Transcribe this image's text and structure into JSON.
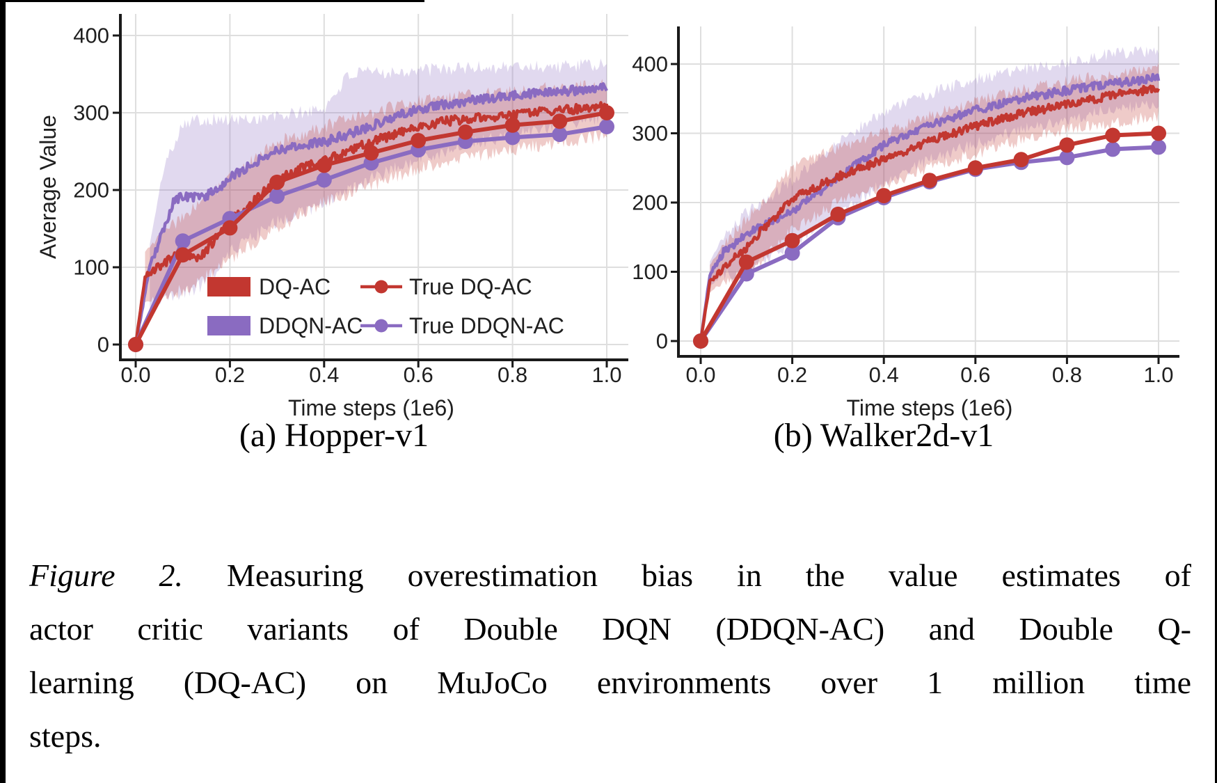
{
  "page": {
    "background": "#ffffff"
  },
  "colors": {
    "red": "#c23730",
    "purple": "#8a6bc1",
    "text": "#1f1f1f",
    "grid": "#dedede",
    "spine": "#1a1a1a"
  },
  "figure": {
    "subcaptions": [
      "(a) Hopper-v1",
      "(b) Walker2d-v1"
    ]
  },
  "caption": {
    "lines": [
      {
        "italic": "Figure 2.",
        "text": " Measuring overestimation bias in the value estimates of"
      },
      {
        "text": "actor critic variants of Double DQN (DDQN-AC) and Double Q-"
      },
      {
        "text": "learning (DQ-AC) on MuJoCo environments over 1 million time"
      },
      {
        "text": "steps."
      }
    ]
  },
  "chart_data": [
    {
      "type": "line",
      "name": "Hopper-v1",
      "xlabel": "Time steps (1e6)",
      "ylabel": "Average Value",
      "xlim": [
        0.0,
        1.0
      ],
      "ylim": [
        0,
        420
      ],
      "xticks": [
        0.0,
        0.2,
        0.4,
        0.6,
        0.8,
        1.0
      ],
      "yticks": [
        0,
        100,
        200,
        300,
        400
      ],
      "grid": true,
      "legend": {
        "position": "lower right",
        "items": [
          {
            "label": "DQ-AC",
            "type": "patch",
            "color": "red"
          },
          {
            "label": "DDQN-AC",
            "type": "patch",
            "color": "purple"
          },
          {
            "label": "True DQ-AC",
            "type": "marker",
            "color": "red"
          },
          {
            "label": "True DDQN-AC",
            "type": "marker",
            "color": "purple"
          }
        ]
      },
      "series": [
        {
          "name": "DQ-AC",
          "style": "noisy",
          "color": "red",
          "points": [
            [
              0,
              0
            ],
            [
              0.02,
              88
            ],
            [
              0.05,
              102
            ],
            [
              0.08,
              112
            ],
            [
              0.1,
              118
            ],
            [
              0.13,
              108
            ],
            [
              0.16,
              130
            ],
            [
              0.2,
              160
            ],
            [
              0.25,
              185
            ],
            [
              0.3,
              212
            ],
            [
              0.35,
              228
            ],
            [
              0.4,
              238
            ],
            [
              0.45,
              250
            ],
            [
              0.5,
              262
            ],
            [
              0.55,
              272
            ],
            [
              0.6,
              283
            ],
            [
              0.65,
              288
            ],
            [
              0.7,
              292
            ],
            [
              0.75,
              295
            ],
            [
              0.8,
              297
            ],
            [
              0.85,
              300
            ],
            [
              0.9,
              303
            ],
            [
              0.95,
              306
            ],
            [
              1.0,
              310
            ]
          ],
          "band_low": [
            [
              0.02,
              55
            ],
            [
              0.05,
              62
            ],
            [
              0.1,
              70
            ],
            [
              0.15,
              88
            ],
            [
              0.2,
              110
            ],
            [
              0.3,
              150
            ],
            [
              0.4,
              185
            ],
            [
              0.5,
              205
            ],
            [
              0.6,
              228
            ],
            [
              0.7,
              242
            ],
            [
              0.8,
              252
            ],
            [
              0.9,
              262
            ],
            [
              1.0,
              270
            ]
          ],
          "band_high": [
            [
              0.02,
              120
            ],
            [
              0.05,
              140
            ],
            [
              0.1,
              165
            ],
            [
              0.15,
              190
            ],
            [
              0.2,
              215
            ],
            [
              0.3,
              262
            ],
            [
              0.4,
              282
            ],
            [
              0.5,
              300
            ],
            [
              0.6,
              315
            ],
            [
              0.7,
              322
            ],
            [
              0.8,
              328
            ],
            [
              0.9,
              332
            ],
            [
              1.0,
              338
            ]
          ]
        },
        {
          "name": "DDQN-AC",
          "style": "noisy",
          "color": "purple",
          "points": [
            [
              0,
              0
            ],
            [
              0.03,
              100
            ],
            [
              0.06,
              150
            ],
            [
              0.08,
              185
            ],
            [
              0.1,
              192
            ],
            [
              0.13,
              190
            ],
            [
              0.15,
              193
            ],
            [
              0.18,
              205
            ],
            [
              0.2,
              215
            ],
            [
              0.25,
              235
            ],
            [
              0.3,
              252
            ],
            [
              0.35,
              258
            ],
            [
              0.4,
              262
            ],
            [
              0.45,
              272
            ],
            [
              0.5,
              283
            ],
            [
              0.55,
              295
            ],
            [
              0.6,
              305
            ],
            [
              0.65,
              310
            ],
            [
              0.7,
              315
            ],
            [
              0.75,
              318
            ],
            [
              0.8,
              322
            ],
            [
              0.85,
              325
            ],
            [
              0.9,
              327
            ],
            [
              0.95,
              330
            ],
            [
              1.0,
              333
            ]
          ],
          "band_low": [
            [
              0.03,
              45
            ],
            [
              0.06,
              60
            ],
            [
              0.1,
              65
            ],
            [
              0.15,
              80
            ],
            [
              0.2,
              120
            ],
            [
              0.3,
              160
            ],
            [
              0.4,
              180
            ],
            [
              0.5,
              215
            ],
            [
              0.6,
              240
            ],
            [
              0.7,
              258
            ],
            [
              0.8,
              272
            ],
            [
              0.9,
              285
            ],
            [
              1.0,
              295
            ]
          ],
          "band_high": [
            [
              0.03,
              130
            ],
            [
              0.06,
              230
            ],
            [
              0.1,
              288
            ],
            [
              0.15,
              292
            ],
            [
              0.2,
              290
            ],
            [
              0.3,
              295
            ],
            [
              0.4,
              305
            ],
            [
              0.45,
              348
            ],
            [
              0.5,
              352
            ],
            [
              0.6,
              355
            ],
            [
              0.7,
              358
            ],
            [
              0.8,
              360
            ],
            [
              0.9,
              360
            ],
            [
              1.0,
              362
            ]
          ]
        },
        {
          "name": "True DQ-AC",
          "style": "markers",
          "color": "red",
          "points": [
            [
              0,
              0
            ],
            [
              0.1,
              116
            ],
            [
              0.2,
              151
            ],
            [
              0.3,
              210
            ],
            [
              0.4,
              232
            ],
            [
              0.5,
              248
            ],
            [
              0.6,
              264
            ],
            [
              0.7,
              275
            ],
            [
              0.8,
              284
            ],
            [
              0.9,
              289
            ],
            [
              1.0,
              300
            ]
          ]
        },
        {
          "name": "True DDQN-AC",
          "style": "markers",
          "color": "purple",
          "points": [
            [
              0,
              0
            ],
            [
              0.1,
              134
            ],
            [
              0.2,
              163
            ],
            [
              0.3,
              192
            ],
            [
              0.4,
              213
            ],
            [
              0.5,
              235
            ],
            [
              0.6,
              252
            ],
            [
              0.7,
              263
            ],
            [
              0.8,
              268
            ],
            [
              0.9,
              272
            ],
            [
              1.0,
              282
            ]
          ]
        }
      ]
    },
    {
      "type": "line",
      "name": "Walker2d-v1",
      "xlabel": "Time steps (1e6)",
      "ylabel": "",
      "xlim": [
        0.0,
        1.0
      ],
      "ylim": [
        0,
        455
      ],
      "xticks": [
        0.0,
        0.2,
        0.4,
        0.6,
        0.8,
        1.0
      ],
      "yticks": [
        0,
        100,
        200,
        300,
        400
      ],
      "grid": true,
      "series": [
        {
          "name": "DQ-AC",
          "style": "noisy",
          "color": "red",
          "points": [
            [
              0,
              0
            ],
            [
              0.02,
              85
            ],
            [
              0.05,
              105
            ],
            [
              0.1,
              135
            ],
            [
              0.15,
              172
            ],
            [
              0.2,
              205
            ],
            [
              0.25,
              222
            ],
            [
              0.3,
              238
            ],
            [
              0.35,
              250
            ],
            [
              0.4,
              262
            ],
            [
              0.45,
              275
            ],
            [
              0.5,
              288
            ],
            [
              0.55,
              300
            ],
            [
              0.6,
              310
            ],
            [
              0.65,
              320
            ],
            [
              0.7,
              328
            ],
            [
              0.75,
              335
            ],
            [
              0.8,
              342
            ],
            [
              0.85,
              348
            ],
            [
              0.9,
              355
            ],
            [
              0.95,
              360
            ],
            [
              1.0,
              365
            ]
          ],
          "band_low": [
            [
              0.02,
              70
            ],
            [
              0.05,
              85
            ],
            [
              0.1,
              95
            ],
            [
              0.2,
              160
            ],
            [
              0.3,
              200
            ],
            [
              0.4,
              225
            ],
            [
              0.5,
              250
            ],
            [
              0.6,
              270
            ],
            [
              0.7,
              290
            ],
            [
              0.8,
              305
            ],
            [
              0.9,
              315
            ],
            [
              1.0,
              325
            ]
          ],
          "band_high": [
            [
              0.02,
              110
            ],
            [
              0.05,
              140
            ],
            [
              0.1,
              175
            ],
            [
              0.2,
              250
            ],
            [
              0.3,
              280
            ],
            [
              0.4,
              300
            ],
            [
              0.5,
              325
            ],
            [
              0.6,
              345
            ],
            [
              0.7,
              362
            ],
            [
              0.8,
              375
            ],
            [
              0.9,
              385
            ],
            [
              1.0,
              395
            ]
          ]
        },
        {
          "name": "DDQN-AC",
          "style": "noisy",
          "color": "purple",
          "points": [
            [
              0,
              0
            ],
            [
              0.02,
              95
            ],
            [
              0.05,
              128
            ],
            [
              0.1,
              155
            ],
            [
              0.15,
              172
            ],
            [
              0.2,
              188
            ],
            [
              0.25,
              210
            ],
            [
              0.3,
              235
            ],
            [
              0.35,
              260
            ],
            [
              0.4,
              282
            ],
            [
              0.45,
              298
            ],
            [
              0.5,
              312
            ],
            [
              0.55,
              322
            ],
            [
              0.6,
              333
            ],
            [
              0.65,
              342
            ],
            [
              0.7,
              350
            ],
            [
              0.75,
              356
            ],
            [
              0.8,
              362
            ],
            [
              0.85,
              367
            ],
            [
              0.9,
              372
            ],
            [
              0.95,
              376
            ],
            [
              1.0,
              380
            ]
          ],
          "band_low": [
            [
              0.02,
              80
            ],
            [
              0.05,
              95
            ],
            [
              0.1,
              100
            ],
            [
              0.2,
              140
            ],
            [
              0.3,
              180
            ],
            [
              0.4,
              230
            ],
            [
              0.5,
              262
            ],
            [
              0.6,
              285
            ],
            [
              0.7,
              305
            ],
            [
              0.8,
              320
            ],
            [
              0.9,
              335
            ],
            [
              1.0,
              340
            ]
          ],
          "band_high": [
            [
              0.02,
              115
            ],
            [
              0.05,
              150
            ],
            [
              0.1,
              185
            ],
            [
              0.2,
              232
            ],
            [
              0.3,
              288
            ],
            [
              0.4,
              332
            ],
            [
              0.5,
              358
            ],
            [
              0.6,
              378
            ],
            [
              0.7,
              392
            ],
            [
              0.8,
              402
            ],
            [
              0.9,
              415
            ],
            [
              1.0,
              420
            ]
          ]
        },
        {
          "name": "True DQ-AC",
          "style": "markers",
          "color": "red",
          "points": [
            [
              0,
              0
            ],
            [
              0.1,
              114
            ],
            [
              0.2,
              145
            ],
            [
              0.3,
              183
            ],
            [
              0.4,
              210
            ],
            [
              0.5,
              232
            ],
            [
              0.6,
              250
            ],
            [
              0.7,
              262
            ],
            [
              0.8,
              283
            ],
            [
              0.9,
              297
            ],
            [
              1.0,
              300
            ]
          ]
        },
        {
          "name": "True DDQN-AC",
          "style": "markers",
          "color": "purple",
          "points": [
            [
              0,
              0
            ],
            [
              0.1,
              97
            ],
            [
              0.2,
              127
            ],
            [
              0.3,
              178
            ],
            [
              0.4,
              207
            ],
            [
              0.5,
              230
            ],
            [
              0.6,
              248
            ],
            [
              0.7,
              258
            ],
            [
              0.8,
              265
            ],
            [
              0.9,
              277
            ],
            [
              1.0,
              280
            ]
          ]
        }
      ]
    }
  ]
}
